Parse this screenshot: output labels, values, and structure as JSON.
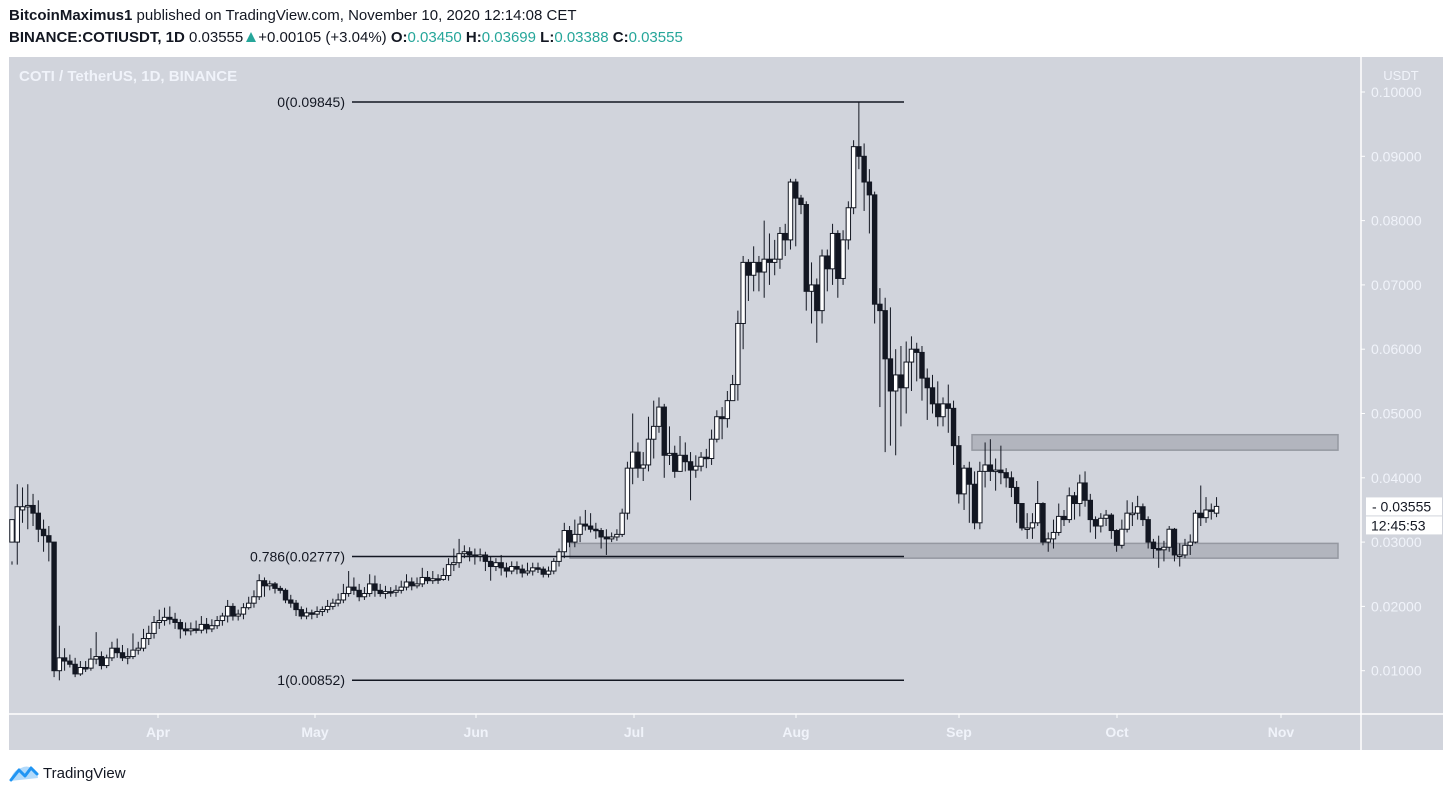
{
  "header": {
    "author": "BitcoinMaximus1",
    "published": " published on TradingView.com, November 10, 2020 12:14:08 CET",
    "symbol": "BINANCE:COTIUSDT, 1D",
    "last": " 0.03555",
    "change": "+0.00105 (+3.04%)",
    "o_label": "O:",
    "o": "0.03450",
    "h_label": "H:",
    "h": "0.03699",
    "l_label": "L:",
    "l": "0.03388",
    "c_label": "C:",
    "c": "0.03555"
  },
  "chart_title": "COTI / TetherUS, 1D, BINANCE",
  "footer": {
    "brand": "TradingView",
    "icon": "tradingview-logo-icon"
  },
  "colors": {
    "background": "#d1d4dc",
    "up_fill": "#ffffff",
    "down_fill": "#131722",
    "wick": "#131722",
    "zone": "#9598a1",
    "axis_text": "#f0f3fa",
    "accent_green": "#26a69a"
  },
  "price_label": {
    "value": "0.03555",
    "countdown": "12:45:53"
  },
  "chart_data": {
    "type": "candlestick",
    "title": "COTI / TetherUS, 1D, BINANCE",
    "xlabel": "",
    "ylabel": "USDT",
    "ylim": [
      0.005,
      0.103
    ],
    "y_ticks": [
      "0.10000",
      "0.09000",
      "0.08000",
      "0.07000",
      "0.06000",
      "0.05000",
      "0.04000",
      "0.03000",
      "0.02000",
      "0.01000"
    ],
    "x_ticks": [
      "Apr",
      "May",
      "Jun",
      "Jul",
      "Aug",
      "Sep",
      "Oct",
      "Nov"
    ],
    "grid": false,
    "fibonacci": [
      {
        "level": "0",
        "price": 0.09845,
        "label": "0(0.09845)"
      },
      {
        "level": "0.786",
        "price": 0.02777,
        "label": "0.786(0.02777)"
      },
      {
        "level": "1",
        "price": 0.00852,
        "label": "1(0.00852)"
      }
    ],
    "zones": [
      {
        "name": "resistance-zone",
        "low": 0.0443,
        "high": 0.0467
      },
      {
        "name": "support-zone",
        "low": 0.0275,
        "high": 0.0298
      }
    ],
    "start_date": "2020-03-04",
    "candles_ohlc": [
      [
        0.03,
        0.0335,
        0.027,
        0.0265
      ],
      [
        0.03,
        0.0355,
        0.039,
        0.0265
      ],
      [
        0.035,
        0.0355,
        0.0385,
        0.033
      ],
      [
        0.0355,
        0.0357,
        0.039,
        0.032
      ],
      [
        0.0357,
        0.0345,
        0.0375,
        0.0325
      ],
      [
        0.0345,
        0.032,
        0.0365,
        0.03
      ],
      [
        0.032,
        0.031,
        0.0335,
        0.0285
      ],
      [
        0.031,
        0.03,
        0.0325,
        0.027
      ],
      [
        0.03,
        0.01,
        0.03,
        0.009
      ],
      [
        0.01,
        0.012,
        0.017,
        0.0085
      ],
      [
        0.012,
        0.0115,
        0.0135,
        0.01
      ],
      [
        0.0115,
        0.011,
        0.0125,
        0.0105
      ],
      [
        0.011,
        0.0095,
        0.012,
        0.009
      ],
      [
        0.0095,
        0.0105,
        0.0115,
        0.0092
      ],
      [
        0.0105,
        0.0104,
        0.0115,
        0.0098
      ],
      [
        0.0104,
        0.0118,
        0.0135,
        0.01
      ],
      [
        0.0118,
        0.0122,
        0.016,
        0.011
      ],
      [
        0.0122,
        0.0108,
        0.013,
        0.0102
      ],
      [
        0.0108,
        0.012,
        0.0125,
        0.0104
      ],
      [
        0.012,
        0.0135,
        0.0145,
        0.0115
      ],
      [
        0.0135,
        0.0128,
        0.015,
        0.012
      ],
      [
        0.0128,
        0.012,
        0.014,
        0.0115
      ],
      [
        0.012,
        0.0122,
        0.0135,
        0.011
      ],
      [
        0.0122,
        0.0132,
        0.0158,
        0.0118
      ],
      [
        0.0132,
        0.0135,
        0.0145,
        0.0125
      ],
      [
        0.0135,
        0.015,
        0.0165,
        0.013
      ],
      [
        0.015,
        0.0158,
        0.017,
        0.014
      ],
      [
        0.0158,
        0.0175,
        0.0185,
        0.015
      ],
      [
        0.0175,
        0.0178,
        0.0195,
        0.0165
      ],
      [
        0.0178,
        0.0183,
        0.0198,
        0.017
      ],
      [
        0.0183,
        0.018,
        0.02,
        0.0172
      ],
      [
        0.018,
        0.0175,
        0.019,
        0.0165
      ],
      [
        0.0175,
        0.0165,
        0.018,
        0.015
      ],
      [
        0.0165,
        0.0162,
        0.0175,
        0.0155
      ],
      [
        0.0162,
        0.0165,
        0.0175,
        0.0155
      ],
      [
        0.0165,
        0.0163,
        0.0178,
        0.0158
      ],
      [
        0.0163,
        0.0172,
        0.0185,
        0.0158
      ],
      [
        0.0172,
        0.0165,
        0.0182,
        0.0158
      ],
      [
        0.0165,
        0.017,
        0.018,
        0.016
      ],
      [
        0.017,
        0.0178,
        0.0185,
        0.0165
      ],
      [
        0.0178,
        0.0185,
        0.019,
        0.017
      ],
      [
        0.0185,
        0.02,
        0.021,
        0.0175
      ],
      [
        0.02,
        0.0185,
        0.0205,
        0.0178
      ],
      [
        0.0185,
        0.0188,
        0.0195,
        0.0178
      ],
      [
        0.0188,
        0.0198,
        0.0205,
        0.018
      ],
      [
        0.0198,
        0.0205,
        0.0215,
        0.0195
      ],
      [
        0.0205,
        0.0215,
        0.0225,
        0.0198
      ],
      [
        0.0215,
        0.024,
        0.025,
        0.021
      ],
      [
        0.024,
        0.0232,
        0.0245,
        0.0215
      ],
      [
        0.0232,
        0.0235,
        0.024,
        0.0225
      ],
      [
        0.0235,
        0.0228,
        0.0238,
        0.022
      ],
      [
        0.0228,
        0.0225,
        0.0232,
        0.022
      ],
      [
        0.0225,
        0.021,
        0.0228,
        0.0205
      ],
      [
        0.021,
        0.0205,
        0.0218,
        0.0198
      ],
      [
        0.0205,
        0.0195,
        0.021,
        0.0185
      ],
      [
        0.0195,
        0.0185,
        0.02,
        0.018
      ],
      [
        0.0185,
        0.019,
        0.0198,
        0.018
      ],
      [
        0.019,
        0.0188,
        0.0195,
        0.018
      ],
      [
        0.0188,
        0.0192,
        0.02,
        0.0182
      ],
      [
        0.0192,
        0.0195,
        0.02,
        0.0185
      ],
      [
        0.0195,
        0.02,
        0.021,
        0.019
      ],
      [
        0.02,
        0.0205,
        0.0212,
        0.0195
      ],
      [
        0.0205,
        0.021,
        0.022,
        0.02
      ],
      [
        0.021,
        0.022,
        0.0235,
        0.0205
      ],
      [
        0.022,
        0.023,
        0.0255,
        0.0215
      ],
      [
        0.023,
        0.0225,
        0.0245,
        0.0218
      ],
      [
        0.0225,
        0.0215,
        0.0235,
        0.0208
      ],
      [
        0.0215,
        0.022,
        0.023,
        0.021
      ],
      [
        0.022,
        0.0235,
        0.025,
        0.0215
      ],
      [
        0.0235,
        0.0225,
        0.0248,
        0.0215
      ],
      [
        0.0225,
        0.022,
        0.0235,
        0.0215
      ],
      [
        0.022,
        0.0223,
        0.0232,
        0.0212
      ],
      [
        0.0223,
        0.0222,
        0.023,
        0.0215
      ],
      [
        0.0222,
        0.0225,
        0.0233,
        0.0215
      ],
      [
        0.0225,
        0.023,
        0.024,
        0.022
      ],
      [
        0.023,
        0.0238,
        0.025,
        0.0225
      ],
      [
        0.0238,
        0.0232,
        0.0245,
        0.0225
      ],
      [
        0.0232,
        0.0235,
        0.0245,
        0.0228
      ],
      [
        0.0235,
        0.0245,
        0.026,
        0.023
      ],
      [
        0.0245,
        0.024,
        0.0255,
        0.0235
      ],
      [
        0.024,
        0.0243,
        0.0255,
        0.0235
      ],
      [
        0.0243,
        0.0242,
        0.025,
        0.0235
      ],
      [
        0.0242,
        0.0248,
        0.026,
        0.024
      ],
      [
        0.0248,
        0.0265,
        0.0275,
        0.024
      ],
      [
        0.0265,
        0.0268,
        0.029,
        0.0255
      ],
      [
        0.0268,
        0.0282,
        0.0305,
        0.026
      ],
      [
        0.0282,
        0.0285,
        0.0295,
        0.0275
      ],
      [
        0.0285,
        0.028,
        0.0292,
        0.027
      ],
      [
        0.028,
        0.0278,
        0.029,
        0.0265
      ],
      [
        0.0278,
        0.028,
        0.029,
        0.027
      ],
      [
        0.028,
        0.027,
        0.0285,
        0.0255
      ],
      [
        0.027,
        0.0262,
        0.0278,
        0.024
      ],
      [
        0.0262,
        0.0268,
        0.0275,
        0.0255
      ],
      [
        0.0268,
        0.026,
        0.028,
        0.0248
      ],
      [
        0.026,
        0.0255,
        0.0268,
        0.0245
      ],
      [
        0.0255,
        0.0262,
        0.027,
        0.025
      ],
      [
        0.0262,
        0.0258,
        0.027,
        0.025
      ],
      [
        0.0258,
        0.0252,
        0.0265,
        0.0245
      ],
      [
        0.0252,
        0.0255,
        0.0268,
        0.0248
      ],
      [
        0.0255,
        0.026,
        0.0268,
        0.0248
      ],
      [
        0.026,
        0.0258,
        0.0268,
        0.0252
      ],
      [
        0.0258,
        0.025,
        0.0262,
        0.0245
      ],
      [
        0.025,
        0.0255,
        0.0262,
        0.0245
      ],
      [
        0.0255,
        0.027,
        0.0275,
        0.025
      ],
      [
        0.027,
        0.0285,
        0.029,
        0.0262
      ],
      [
        0.0285,
        0.0318,
        0.033,
        0.0275
      ],
      [
        0.0318,
        0.03,
        0.0325,
        0.0292
      ],
      [
        0.03,
        0.0312,
        0.0335,
        0.0292
      ],
      [
        0.0312,
        0.0328,
        0.034,
        0.03
      ],
      [
        0.0328,
        0.0325,
        0.035,
        0.0318
      ],
      [
        0.0325,
        0.032,
        0.0345,
        0.0315
      ],
      [
        0.032,
        0.0318,
        0.033,
        0.0305
      ],
      [
        0.0318,
        0.0308,
        0.0322,
        0.029
      ],
      [
        0.0308,
        0.0305,
        0.032,
        0.028
      ],
      [
        0.0305,
        0.0308,
        0.0315,
        0.03
      ],
      [
        0.0308,
        0.0312,
        0.032,
        0.0302
      ],
      [
        0.0312,
        0.0345,
        0.0352,
        0.0308
      ],
      [
        0.0345,
        0.0415,
        0.0425,
        0.0335
      ],
      [
        0.0415,
        0.044,
        0.05,
        0.039
      ],
      [
        0.044,
        0.0415,
        0.0455,
        0.04
      ],
      [
        0.0415,
        0.042,
        0.044,
        0.0395
      ],
      [
        0.042,
        0.046,
        0.0495,
        0.041
      ],
      [
        0.046,
        0.048,
        0.052,
        0.043
      ],
      [
        0.048,
        0.051,
        0.0525,
        0.047
      ],
      [
        0.051,
        0.0435,
        0.0515,
        0.04
      ],
      [
        0.0435,
        0.0438,
        0.048,
        0.042
      ],
      [
        0.0438,
        0.041,
        0.045,
        0.04
      ],
      [
        0.041,
        0.0435,
        0.0465,
        0.0415
      ],
      [
        0.0435,
        0.0425,
        0.0455,
        0.041
      ],
      [
        0.0425,
        0.0412,
        0.044,
        0.0365
      ],
      [
        0.0412,
        0.0418,
        0.0435,
        0.04
      ],
      [
        0.0418,
        0.0432,
        0.044,
        0.041
      ],
      [
        0.0432,
        0.043,
        0.0445,
        0.0415
      ],
      [
        0.043,
        0.046,
        0.0475,
        0.042
      ],
      [
        0.046,
        0.0495,
        0.0505,
        0.0455
      ],
      [
        0.0495,
        0.0492,
        0.051,
        0.046
      ],
      [
        0.0492,
        0.052,
        0.0535,
        0.0478
      ],
      [
        0.052,
        0.0545,
        0.056,
        0.052
      ],
      [
        0.0545,
        0.064,
        0.066,
        0.052
      ],
      [
        0.064,
        0.0735,
        0.0745,
        0.06
      ],
      [
        0.0735,
        0.0715,
        0.074,
        0.0675
      ],
      [
        0.0715,
        0.0735,
        0.076,
        0.069
      ],
      [
        0.0735,
        0.072,
        0.0745,
        0.069
      ],
      [
        0.072,
        0.074,
        0.08,
        0.068
      ],
      [
        0.074,
        0.0735,
        0.078,
        0.07
      ],
      [
        0.0735,
        0.074,
        0.077,
        0.0715
      ],
      [
        0.074,
        0.078,
        0.079,
        0.0725
      ],
      [
        0.078,
        0.077,
        0.0795,
        0.0745
      ],
      [
        0.077,
        0.086,
        0.0865,
        0.0755
      ],
      [
        0.086,
        0.0835,
        0.0865,
        0.076
      ],
      [
        0.0835,
        0.0825,
        0.084,
        0.081
      ],
      [
        0.0825,
        0.069,
        0.083,
        0.066
      ],
      [
        0.069,
        0.07,
        0.0735,
        0.064
      ],
      [
        0.07,
        0.066,
        0.071,
        0.061
      ],
      [
        0.066,
        0.0745,
        0.0755,
        0.064
      ],
      [
        0.0745,
        0.0725,
        0.0755,
        0.069
      ],
      [
        0.0725,
        0.078,
        0.0795,
        0.07
      ],
      [
        0.078,
        0.071,
        0.0785,
        0.068
      ],
      [
        0.071,
        0.077,
        0.0785,
        0.07
      ],
      [
        0.077,
        0.082,
        0.083,
        0.0755
      ],
      [
        0.082,
        0.0915,
        0.0925,
        0.081
      ],
      [
        0.0915,
        0.09,
        0.0985,
        0.088
      ],
      [
        0.09,
        0.086,
        0.092,
        0.0815
      ],
      [
        0.086,
        0.084,
        0.088,
        0.078
      ],
      [
        0.084,
        0.067,
        0.0845,
        0.064
      ],
      [
        0.067,
        0.066,
        0.0695,
        0.051
      ],
      [
        0.066,
        0.0585,
        0.068,
        0.044
      ],
      [
        0.0585,
        0.0535,
        0.0665,
        0.045
      ],
      [
        0.0535,
        0.056,
        0.06,
        0.0435
      ],
      [
        0.056,
        0.054,
        0.0605,
        0.048
      ],
      [
        0.054,
        0.058,
        0.0612,
        0.05
      ],
      [
        0.058,
        0.06,
        0.062,
        0.0535
      ],
      [
        0.06,
        0.0595,
        0.061,
        0.055
      ],
      [
        0.0595,
        0.0555,
        0.0605,
        0.052
      ],
      [
        0.0555,
        0.054,
        0.057,
        0.049
      ],
      [
        0.054,
        0.0515,
        0.056,
        0.05
      ],
      [
        0.0515,
        0.0495,
        0.055,
        0.048
      ],
      [
        0.0495,
        0.0515,
        0.0525,
        0.048
      ],
      [
        0.0515,
        0.0508,
        0.0545,
        0.047
      ],
      [
        0.0508,
        0.045,
        0.052,
        0.042
      ],
      [
        0.045,
        0.0375,
        0.0465,
        0.036
      ],
      [
        0.0375,
        0.0415,
        0.042,
        0.035
      ],
      [
        0.0415,
        0.039,
        0.0425,
        0.033
      ],
      [
        0.039,
        0.033,
        0.041,
        0.032
      ],
      [
        0.033,
        0.041,
        0.0425,
        0.032
      ],
      [
        0.041,
        0.042,
        0.0455,
        0.0385
      ],
      [
        0.042,
        0.041,
        0.046,
        0.0395
      ],
      [
        0.041,
        0.0412,
        0.043,
        0.038
      ],
      [
        0.0412,
        0.0408,
        0.045,
        0.039
      ],
      [
        0.0408,
        0.04,
        0.0415,
        0.0385
      ],
      [
        0.04,
        0.0385,
        0.041,
        0.037
      ],
      [
        0.0385,
        0.036,
        0.0395,
        0.033
      ],
      [
        0.036,
        0.0322,
        0.036,
        0.0318
      ],
      [
        0.0322,
        0.0322,
        0.0345,
        0.0305
      ],
      [
        0.0322,
        0.033,
        0.0345,
        0.0305
      ],
      [
        0.033,
        0.036,
        0.0395,
        0.0325
      ],
      [
        0.036,
        0.03,
        0.0362,
        0.0295
      ],
      [
        0.03,
        0.0305,
        0.0315,
        0.0285
      ],
      [
        0.0305,
        0.0315,
        0.0335,
        0.029
      ],
      [
        0.0315,
        0.034,
        0.036,
        0.031
      ],
      [
        0.034,
        0.0335,
        0.035,
        0.0325
      ],
      [
        0.0335,
        0.0372,
        0.0385,
        0.033
      ],
      [
        0.0372,
        0.036,
        0.0378,
        0.0335
      ],
      [
        0.036,
        0.0392,
        0.0405,
        0.034
      ],
      [
        0.0392,
        0.0365,
        0.041,
        0.0355
      ],
      [
        0.0365,
        0.0335,
        0.0375,
        0.0315
      ],
      [
        0.0335,
        0.0325,
        0.034,
        0.0305
      ],
      [
        0.0325,
        0.0337,
        0.0345,
        0.0315
      ],
      [
        0.0337,
        0.0342,
        0.035,
        0.0325
      ],
      [
        0.0342,
        0.0318,
        0.0345,
        0.0305
      ],
      [
        0.0318,
        0.0295,
        0.032,
        0.0285
      ],
      [
        0.0295,
        0.032,
        0.0335,
        0.029
      ],
      [
        0.032,
        0.0345,
        0.0365,
        0.0315
      ],
      [
        0.0345,
        0.0345,
        0.0362,
        0.0325
      ],
      [
        0.0345,
        0.0355,
        0.0372,
        0.0335
      ],
      [
        0.0355,
        0.0335,
        0.036,
        0.0325
      ],
      [
        0.0335,
        0.03,
        0.034,
        0.029
      ],
      [
        0.03,
        0.029,
        0.0305,
        0.0275
      ],
      [
        0.029,
        0.0288,
        0.031,
        0.026
      ],
      [
        0.0288,
        0.0292,
        0.0302,
        0.027
      ],
      [
        0.0292,
        0.032,
        0.0325,
        0.0285
      ],
      [
        0.032,
        0.028,
        0.0322,
        0.027
      ],
      [
        0.028,
        0.028,
        0.0298,
        0.0262
      ],
      [
        0.028,
        0.0295,
        0.0305,
        0.0275
      ],
      [
        0.0295,
        0.03,
        0.0312,
        0.028
      ],
      [
        0.03,
        0.0345,
        0.035,
        0.0298
      ],
      [
        0.0345,
        0.0338,
        0.0388,
        0.0325
      ],
      [
        0.0338,
        0.035,
        0.037,
        0.033
      ],
      [
        0.035,
        0.0348,
        0.036,
        0.0335
      ],
      [
        0.0345,
        0.03555,
        0.03699,
        0.03388
      ]
    ]
  }
}
